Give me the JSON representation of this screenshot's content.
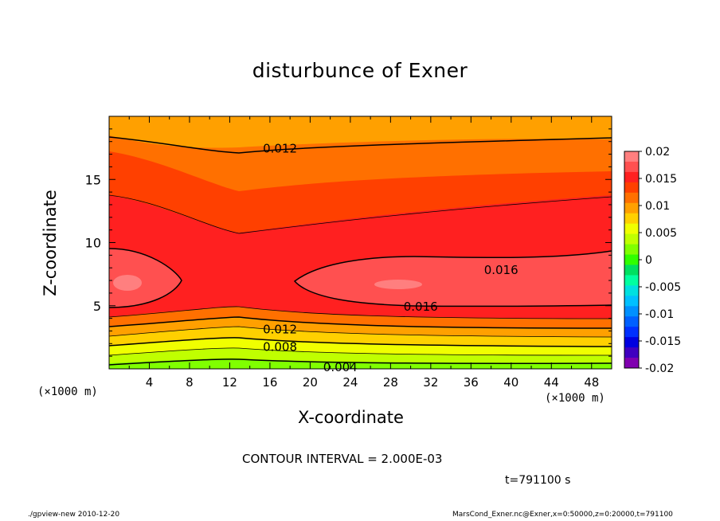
{
  "chart_data": {
    "type": "contour",
    "title": "disturbunce of Exner",
    "xlabel": "X-coordinate",
    "ylabel": "Z-coordinate",
    "x_unit": "(×1000 m)",
    "xlim": [
      0,
      50
    ],
    "ylim": [
      0,
      20
    ],
    "x_ticks": [
      4,
      8,
      12,
      16,
      20,
      24,
      28,
      32,
      36,
      40,
      44,
      48
    ],
    "y_ticks": [
      5,
      10,
      15
    ],
    "contour_interval_text": "CONTOUR INTERVAL = 2.000E-03",
    "time_text": "t=791100 s",
    "contour_labels": [
      {
        "text": "0.012",
        "x": 17,
        "z": 17.5
      },
      {
        "text": "0.016",
        "x": 39,
        "z": 7.9
      },
      {
        "text": "0.016",
        "x": 31,
        "z": 5.0
      },
      {
        "text": "0.012",
        "x": 17,
        "z": 3.2
      },
      {
        "text": "0.008",
        "x": 17,
        "z": 1.8
      },
      {
        "text": "0.004",
        "x": 23,
        "z": 0.2
      }
    ],
    "colorbar": {
      "ticks": [
        "0.02",
        "0.015",
        "0.01",
        "0.005",
        "0",
        "-0.005",
        "-0.01",
        "-0.015",
        "-0.02"
      ],
      "colors": [
        "#ff7f7f",
        "#ff5050",
        "#ff2020",
        "#ff4000",
        "#ff7000",
        "#ffa000",
        "#ffd000",
        "#f0ff00",
        "#c0ff00",
        "#80ff00",
        "#30ff00",
        "#00e060",
        "#00ffa0",
        "#00e0e0",
        "#00c0ff",
        "#0090ff",
        "#0060ff",
        "#0030ff",
        "#0000e0",
        "#4000c0",
        "#8000b0"
      ]
    }
  },
  "footer": {
    "left": "./gpview-new   2010-12-20",
    "right": "MarsCond_Exner.nc@Exner,x=0:50000,z=0:20000,t=791100"
  }
}
